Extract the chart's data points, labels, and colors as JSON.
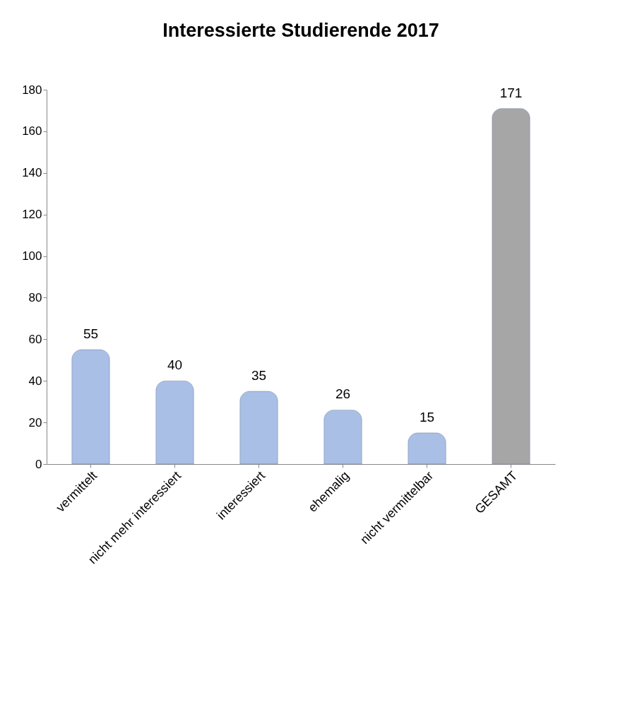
{
  "chart_data": {
    "type": "bar",
    "title": "Interessierte Studierende 2017",
    "categories": [
      "vermittelt",
      "nicht mehr interessiert",
      "interessiert",
      "ehemalig",
      "nicht vermittelbar",
      "GESAMT"
    ],
    "values": [
      55,
      40,
      35,
      26,
      15,
      171
    ],
    "colors": [
      "#a9bfe6",
      "#a9bfe6",
      "#a9bfe6",
      "#a9bfe6",
      "#a9bfe6",
      "#a6a6a6"
    ],
    "ylim": [
      0,
      180
    ],
    "yticks": [
      0,
      20,
      40,
      60,
      80,
      100,
      120,
      140,
      160,
      180
    ],
    "data_labels": true,
    "grid": false
  }
}
